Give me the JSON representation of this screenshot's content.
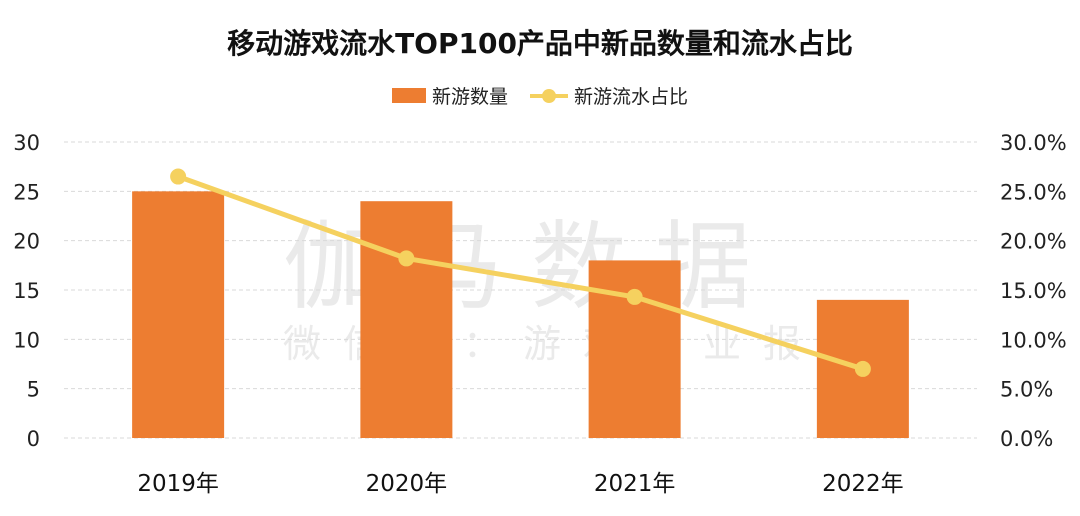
{
  "chart_data": {
    "type": "bar",
    "title": "移动游戏流水TOP100产品中新品数量和流水占比",
    "categories": [
      "2019年",
      "2020年",
      "2021年",
      "2022年"
    ],
    "series": [
      {
        "name": "新游数量",
        "type": "bar",
        "axis": "left",
        "color": "#ED7D31",
        "values": [
          25,
          24,
          18,
          14
        ]
      },
      {
        "name": "新游流水占比",
        "type": "line",
        "axis": "right",
        "color": "#F5D15F",
        "values": [
          26.5,
          18.2,
          14.3,
          7.0
        ]
      }
    ],
    "left_axis": {
      "ylim": [
        0,
        30
      ],
      "ticks": [
        "0",
        "5",
        "10",
        "15",
        "20",
        "25",
        "30"
      ]
    },
    "right_axis": {
      "ylim": [
        0,
        30
      ],
      "unit": "%",
      "ticks": [
        "0.0%",
        "5.0%",
        "10.0%",
        "15.0%",
        "20.0%",
        "25.0%",
        "30.0%"
      ]
    },
    "grid": true,
    "legend": "top-center",
    "watermark": {
      "main": "伽马数据",
      "sub": "微信号：游戏产业报告"
    }
  }
}
